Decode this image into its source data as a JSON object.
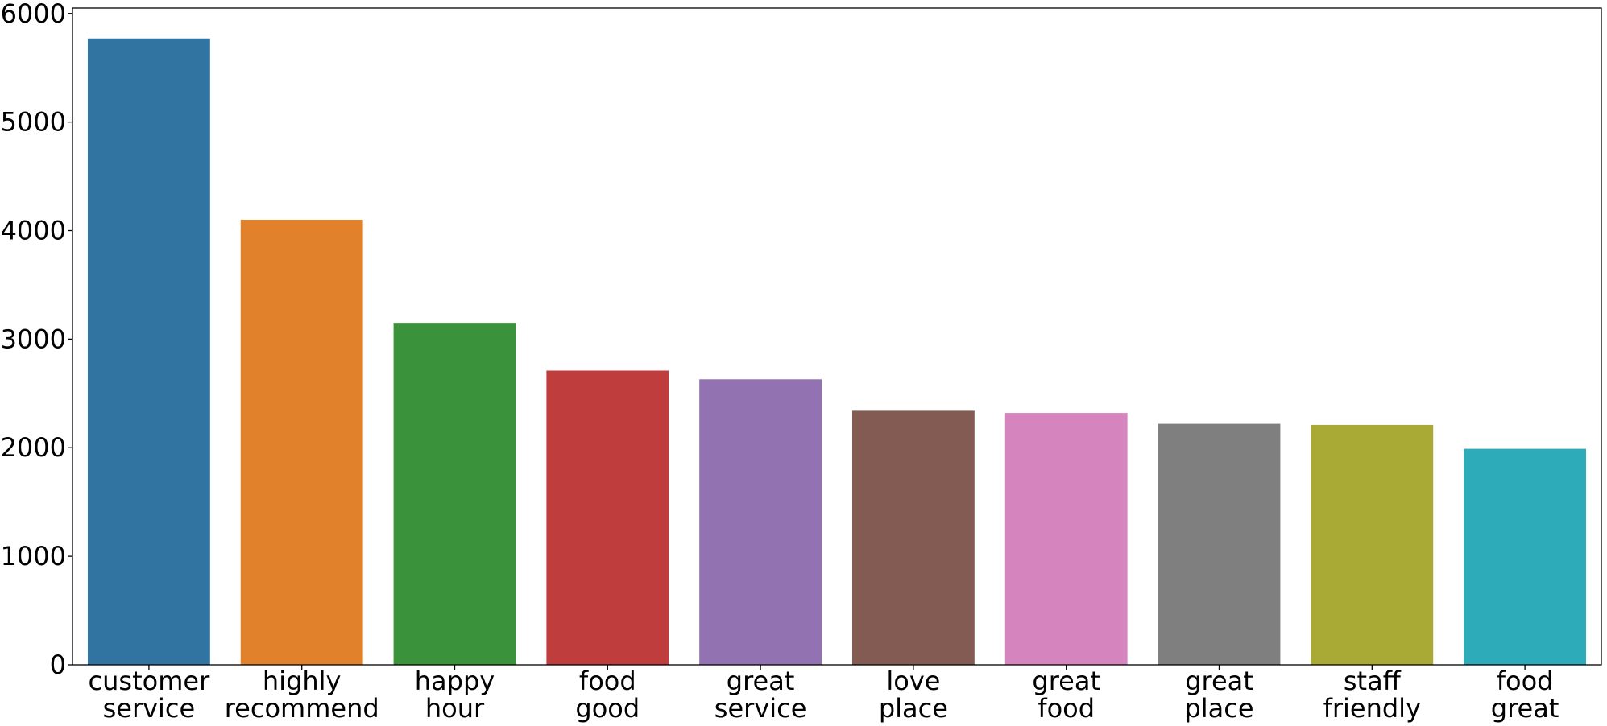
{
  "chart_data": {
    "type": "bar",
    "title": "",
    "xlabel": "",
    "ylabel": "",
    "categories": [
      [
        "customer",
        "service"
      ],
      [
        "highly",
        "recommend"
      ],
      [
        "happy",
        "hour"
      ],
      [
        "food",
        "good"
      ],
      [
        "great",
        "service"
      ],
      [
        "love",
        "place"
      ],
      [
        "great",
        "food"
      ],
      [
        "great",
        "place"
      ],
      [
        "staff",
        "friendly"
      ],
      [
        "food",
        "great"
      ]
    ],
    "values": [
      5770,
      4100,
      3150,
      2710,
      2630,
      2340,
      2320,
      2220,
      2210,
      1990
    ],
    "colors": [
      "#3274a1",
      "#e1812c",
      "#3a923a",
      "#c03d3e",
      "#9372b2",
      "#845b53",
      "#d684bd",
      "#7f7f7f",
      "#a9aa35",
      "#2eabb8"
    ],
    "ylim": [
      0,
      6050
    ],
    "yticks": [
      0,
      1000,
      2000,
      3000,
      4000,
      5000,
      6000
    ],
    "grid": false,
    "legend": "none"
  }
}
